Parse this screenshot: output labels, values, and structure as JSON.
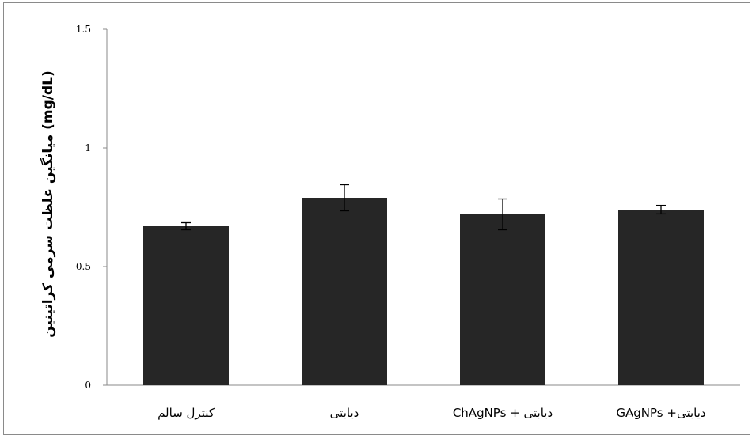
{
  "chart_data": {
    "type": "bar",
    "categories": [
      "کنترل سالم",
      "دیابتی",
      "دیابتی + ChAgNPs",
      "دیابتی+ GAgNPs"
    ],
    "values": [
      0.67,
      0.79,
      0.72,
      0.74
    ],
    "errors": [
      0.015,
      0.055,
      0.065,
      0.018
    ],
    "title": "",
    "xlabel": "",
    "ylabel": "میانگین غلظت سرمی کراتینین  (mg/dL)",
    "ylim": [
      0,
      1.5
    ],
    "yticks": [
      "0",
      "0.5",
      "1",
      "1.5"
    ],
    "grid": false,
    "legend": "none",
    "bar_color": "#262626",
    "axis_color": "#8a8a8a"
  }
}
